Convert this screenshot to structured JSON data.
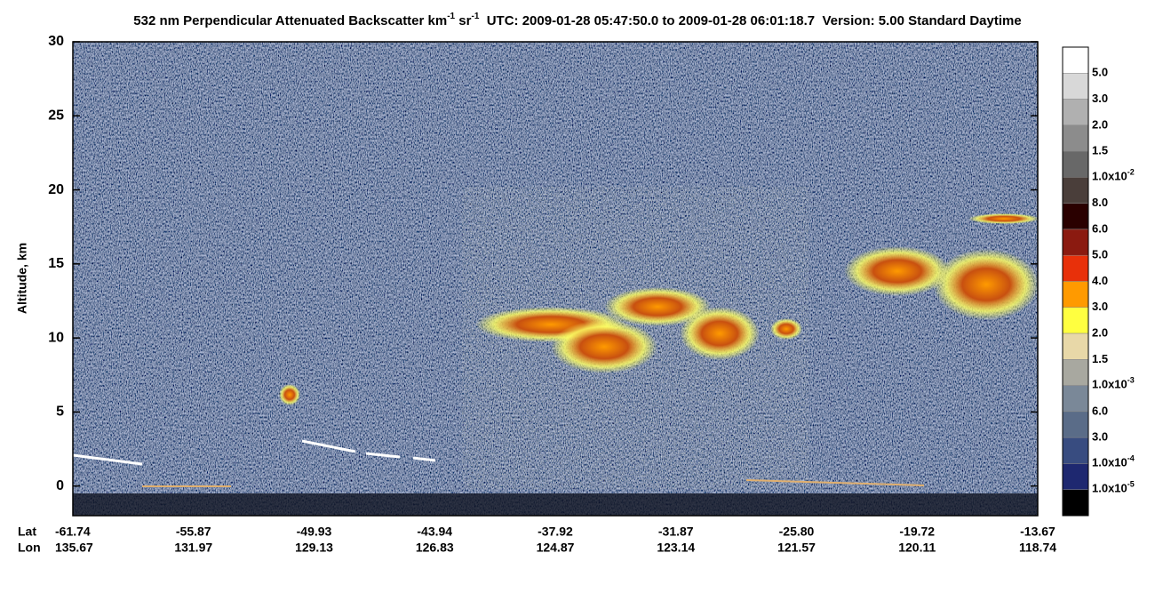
{
  "chart_data": {
    "type": "heatmap",
    "title_main": "532 nm Perpendicular Attenuated Backscatter km",
    "title_exp1": "-1",
    "title_mid": " sr",
    "title_exp2": "-1",
    "title_rest": "  UTC: 2009-01-28 05:47:50.0 to 2009-01-28 06:01:18.7  Version: 5.00 Standard Daytime",
    "y_label": "Altitude, km",
    "ylim": [
      -2,
      30
    ],
    "yticks": [
      0,
      5,
      10,
      15,
      20,
      25,
      30
    ],
    "x_row_labels": [
      "Lat",
      "Lon"
    ],
    "lat": [
      "-61.74",
      "-55.87",
      "-49.93",
      "-43.94",
      "-37.92",
      "-31.87",
      "-25.80",
      "-19.72",
      "-13.67"
    ],
    "lon": [
      "135.67",
      "131.97",
      "129.13",
      "126.83",
      "124.87",
      "123.14",
      "121.57",
      "120.11",
      "118.74"
    ],
    "colorbar": {
      "colors": [
        "#ffffff",
        "#d8d8d8",
        "#b0b0b0",
        "#8c8c8c",
        "#686868",
        "#4a3e3a",
        "#2a0000",
        "#8b1a10",
        "#e8300a",
        "#ff9a00",
        "#ffff40",
        "#e8d8a8",
        "#a8a8a0",
        "#7a8898",
        "#5a6c88",
        "#384c80",
        "#1e2870",
        "#000000"
      ],
      "labels": [
        "5.0",
        "3.0",
        "2.0",
        "1.5",
        {
          "base": "1.0x10",
          "exp": "-2"
        },
        "8.0",
        "6.0",
        "5.0",
        "4.0",
        "3.0",
        "2.0",
        "1.5",
        {
          "base": "1.0x10",
          "exp": "-3"
        },
        "6.0",
        "3.0",
        {
          "base": "1.0x10",
          "exp": "-4"
        },
        {
          "base": "1.0x10",
          "exp": "-5"
        }
      ]
    }
  }
}
